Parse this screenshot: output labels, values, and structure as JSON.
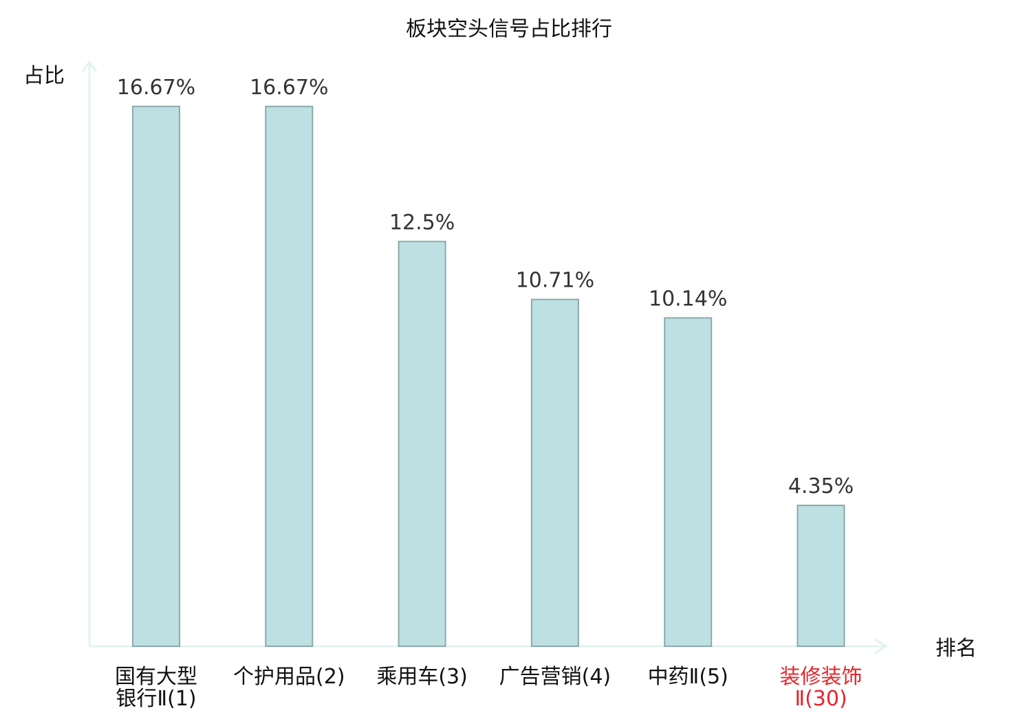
{
  "chart_data": {
    "type": "bar",
    "title": "板块空头信号占比排行",
    "ylabel": "占比",
    "xlabel": "排名",
    "ylim": [
      0,
      18
    ],
    "grid": false,
    "categories": [
      {
        "name": "国有大型银行Ⅱ",
        "rank": "(1)",
        "highlight": false
      },
      {
        "name": "个护用品",
        "rank": "(2)",
        "highlight": false
      },
      {
        "name": "乘用车",
        "rank": "(3)",
        "highlight": false
      },
      {
        "name": "广告营销",
        "rank": "(4)",
        "highlight": false
      },
      {
        "name": "中药Ⅱ",
        "rank": "(5)",
        "highlight": false
      },
      {
        "name": "装修装饰Ⅱ",
        "rank": "(30)",
        "highlight": true
      }
    ],
    "values": [
      16.67,
      16.67,
      12.5,
      10.71,
      10.14,
      4.35
    ],
    "value_labels": [
      "16.67%",
      "16.67%",
      "12.5%",
      "10.71%",
      "10.14%",
      "4.35%"
    ],
    "colors": {
      "bar_fill": "#bde0e3",
      "bar_stroke": "#8aa9ab",
      "axis": "#e2f3f1",
      "highlight_text": "#e4262b"
    }
  }
}
